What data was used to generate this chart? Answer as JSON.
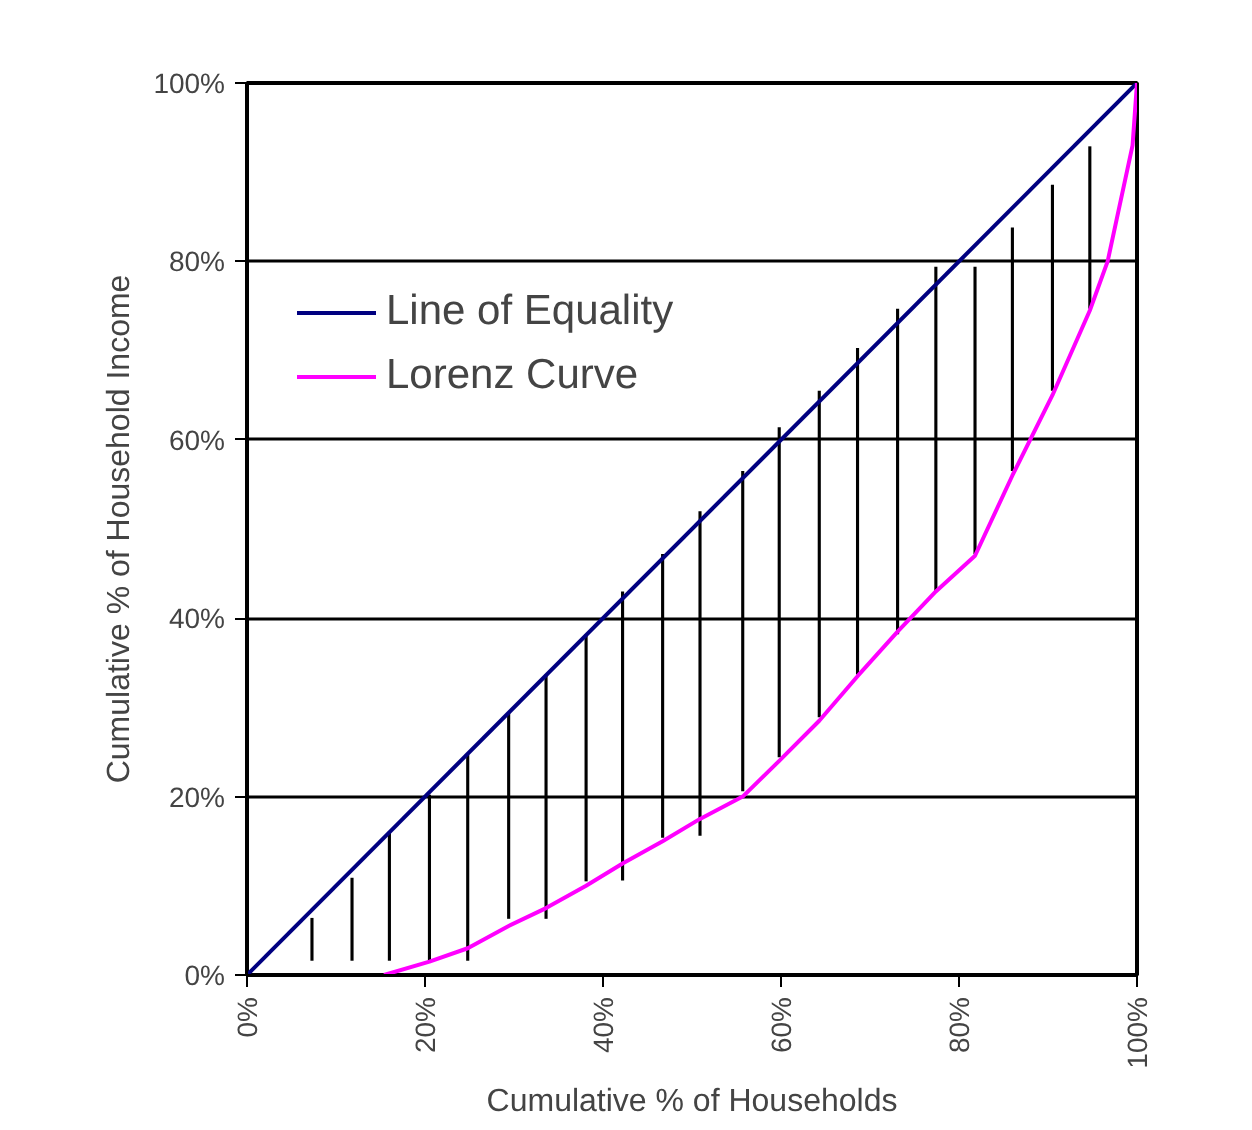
{
  "chart_data": {
    "type": "line",
    "xlabel": "Cumulative % of Households",
    "ylabel": "Cumulative % of Household Income",
    "xlim": [
      0,
      100
    ],
    "ylim": [
      0,
      100
    ],
    "xticks": [
      {
        "value": 0,
        "label": "0%"
      },
      {
        "value": 20,
        "label": "20%"
      },
      {
        "value": 40,
        "label": "40%"
      },
      {
        "value": 60,
        "label": "60%"
      },
      {
        "value": 80,
        "label": "80%"
      },
      {
        "value": 100,
        "label": "100%"
      }
    ],
    "yticks": [
      {
        "value": 0,
        "label": "0%"
      },
      {
        "value": 20,
        "label": "20%"
      },
      {
        "value": 40,
        "label": "40%"
      },
      {
        "value": 60,
        "label": "60%"
      },
      {
        "value": 80,
        "label": "80%"
      },
      {
        "value": 100,
        "label": "100%"
      }
    ],
    "grid": "y",
    "legend": "top left",
    "series": [
      {
        "type": "bar",
        "color": "#000000",
        "x": [
          7.3,
          11.8,
          16.0,
          20.5,
          24.8,
          29.4,
          33.6,
          38.1,
          42.2,
          46.7,
          50.9,
          55.7,
          59.8,
          64.3,
          68.6,
          73.1,
          77.4,
          81.8,
          86.0,
          90.5,
          94.7
        ],
        "base": [
          1.6,
          1.6,
          1.6,
          1.6,
          1.6,
          6.3,
          6.3,
          10.5,
          10.6,
          15.4,
          15.6,
          20.6,
          24.4,
          28.9,
          33.7,
          38.2,
          43.0,
          47.2,
          56.5,
          65.5,
          74.7
        ],
        "values": [
          4.8,
          9.3,
          14.5,
          18.6,
          23.1,
          23.1,
          27.4,
          27.7,
          32.4,
          31.8,
          36.4,
          35.9,
          37.0,
          36.6,
          36.6,
          36.5,
          36.4,
          32.2,
          27.3,
          23.1,
          18.2
        ]
      },
      {
        "name": "Line of Equality",
        "color": "#000080",
        "x": [
          0,
          100
        ],
        "values": [
          0,
          100
        ]
      },
      {
        "name": "Lorenz Curve",
        "color": "#ff00ff",
        "x": [
          15.4,
          20.5,
          24.8,
          29.4,
          33.6,
          38.1,
          42.2,
          46.7,
          50.9,
          55.7,
          59.8,
          64.3,
          68.6,
          73.1,
          77.4,
          81.8,
          86.0,
          90.5,
          94.7,
          96.7,
          99.5,
          100
        ],
        "values": [
          0,
          1.5,
          3,
          5.5,
          7.5,
          10,
          12.5,
          15,
          17.5,
          20,
          24,
          28.5,
          33.5,
          38.5,
          43,
          47,
          56,
          65,
          74.5,
          80,
          93,
          100
        ]
      }
    ]
  }
}
